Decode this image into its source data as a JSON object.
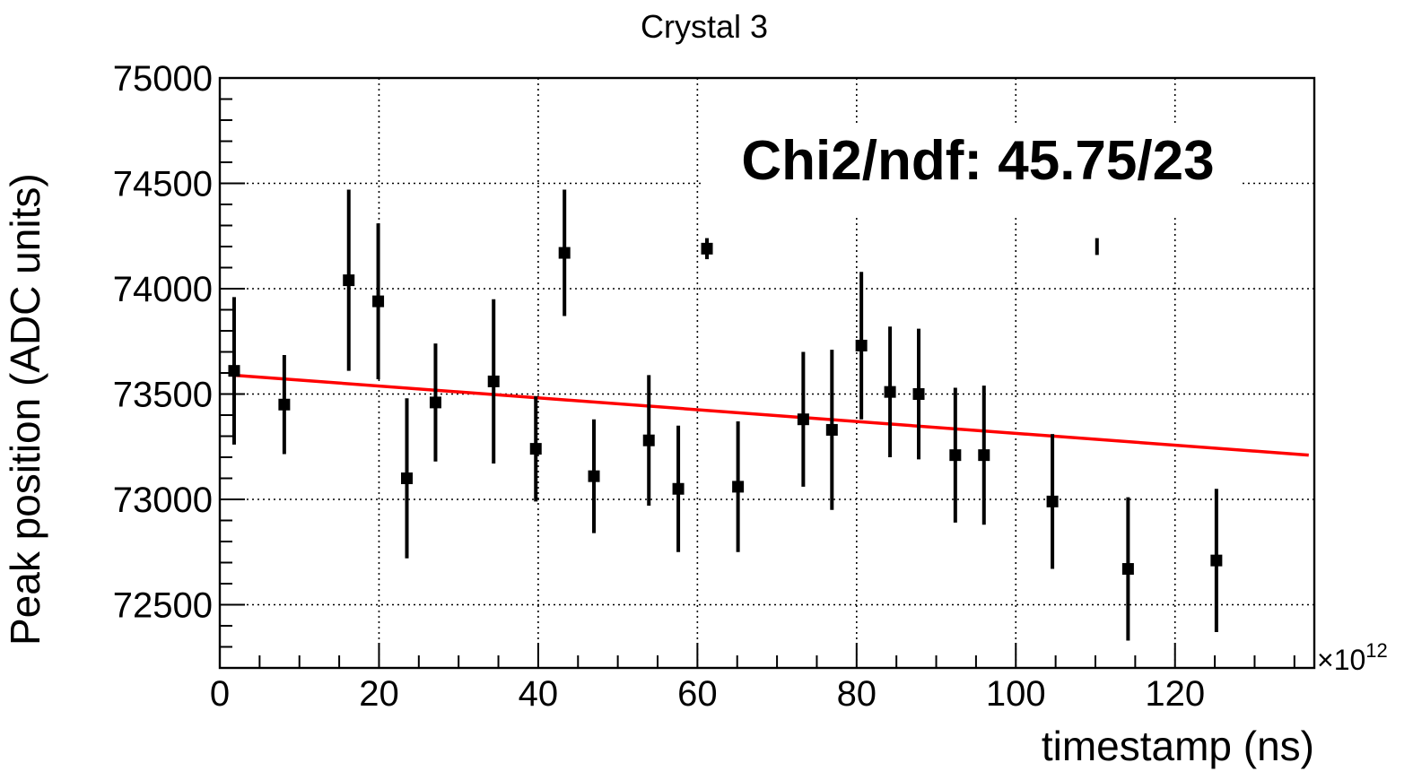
{
  "chart_data": {
    "type": "scatter",
    "title": "Crystal 3",
    "xlabel": "timestamp (ns)",
    "ylabel": "Peak position (ADC units)",
    "x_multiplier": "×10",
    "x_multiplier_exp": "12",
    "annotation": "Chi2/ndf: 45.75/23",
    "xlim": [
      0,
      137.5
    ],
    "ylim": [
      72200,
      75000
    ],
    "xticks": [
      0,
      20,
      40,
      60,
      80,
      100,
      120
    ],
    "yticks": [
      72500,
      73000,
      73500,
      74000,
      74500,
      75000
    ],
    "grid": true,
    "series": [
      {
        "marker": "square",
        "color": "#000000",
        "points": [
          {
            "x": 1.8,
            "y": 73610,
            "err": 350
          },
          {
            "x": 8.1,
            "y": 73450,
            "err": 235
          },
          {
            "x": 16.2,
            "y": 74040,
            "err": 430
          },
          {
            "x": 19.9,
            "y": 73940,
            "err": 370
          },
          {
            "x": 23.5,
            "y": 73100,
            "err": 380
          },
          {
            "x": 27.1,
            "y": 73460,
            "err": 280
          },
          {
            "x": 34.4,
            "y": 73560,
            "err": 390
          },
          {
            "x": 39.7,
            "y": 73240,
            "err": 250
          },
          {
            "x": 43.3,
            "y": 74170,
            "err": 300
          },
          {
            "x": 47.0,
            "y": 73110,
            "err": 270
          },
          {
            "x": 53.9,
            "y": 73280,
            "err": 310
          },
          {
            "x": 57.6,
            "y": 73050,
            "err": 300
          },
          {
            "x": 61.2,
            "y": 74190,
            "err": 50
          },
          {
            "x": 65.1,
            "y": 73060,
            "err": 310
          },
          {
            "x": 73.3,
            "y": 73380,
            "err": 320
          },
          {
            "x": 76.9,
            "y": 73330,
            "err": 380
          },
          {
            "x": 80.6,
            "y": 73730,
            "err": 350
          },
          {
            "x": 84.2,
            "y": 73510,
            "err": 310
          },
          {
            "x": 87.8,
            "y": 73500,
            "err": 310
          },
          {
            "x": 92.4,
            "y": 73210,
            "err": 320
          },
          {
            "x": 96.0,
            "y": 73210,
            "err": 330
          },
          {
            "x": 104.6,
            "y": 72990,
            "err": 320
          },
          {
            "x": 110.2,
            "y": 74200,
            "err": 40,
            "no_marker": true
          },
          {
            "x": 114.1,
            "y": 72670,
            "err": 340
          },
          {
            "x": 125.2,
            "y": 72710,
            "err": 340
          }
        ]
      }
    ],
    "fit_line": {
      "color": "#ff0000",
      "x": [
        1.5,
        136.8
      ],
      "y": [
        73590,
        73210
      ]
    }
  }
}
